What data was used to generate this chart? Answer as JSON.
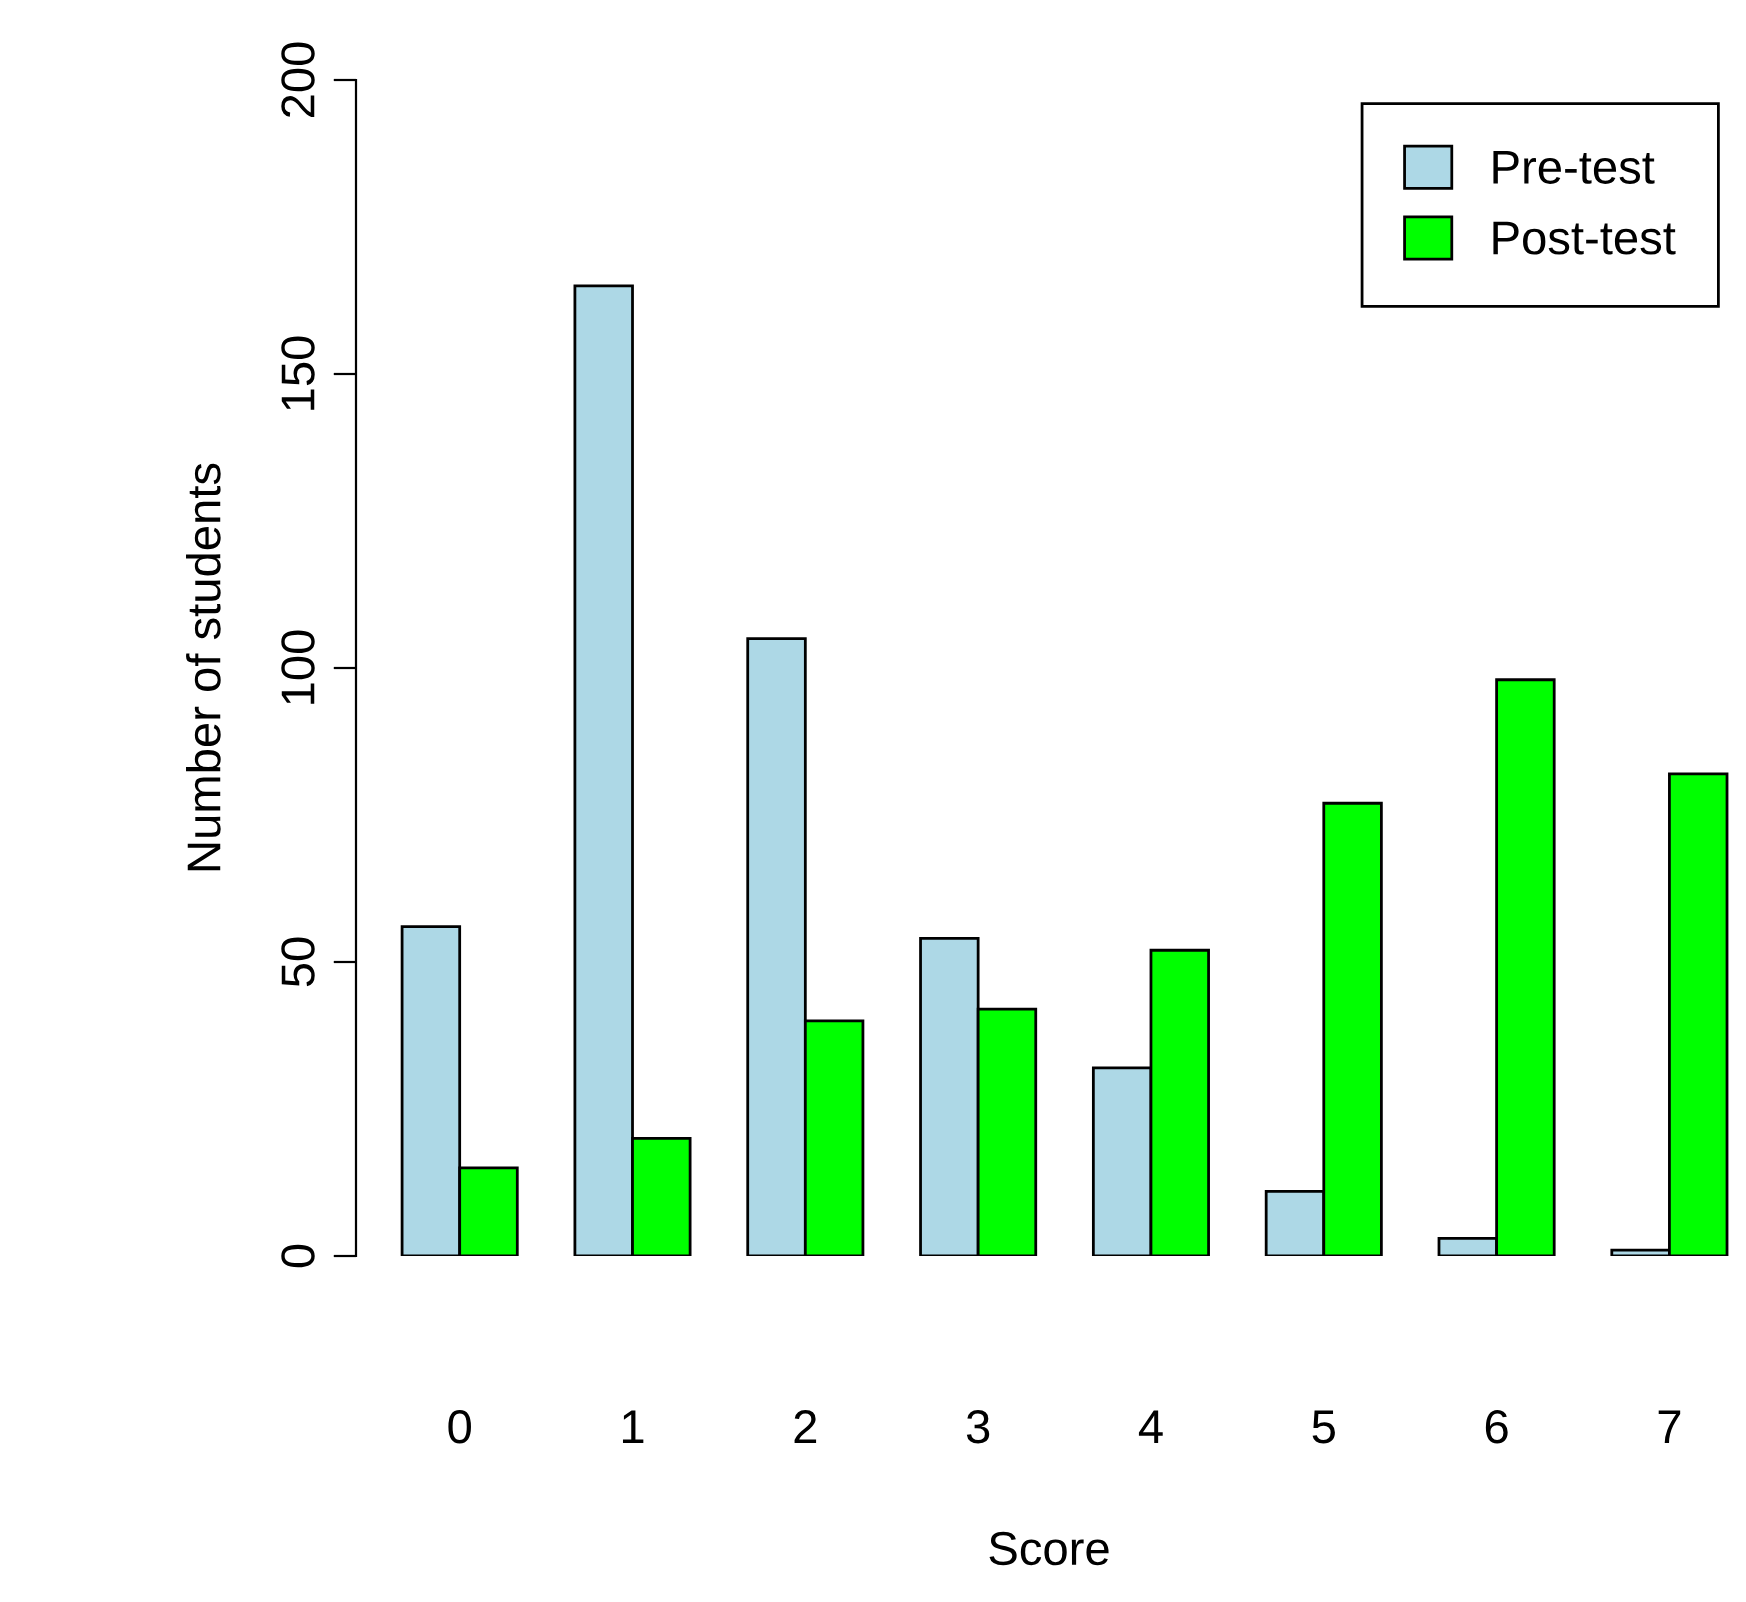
{
  "chart_data": {
    "type": "bar",
    "xlabel": "Score",
    "ylabel": "Number of students",
    "categories": [
      "0",
      "1",
      "2",
      "3",
      "4",
      "5",
      "6",
      "7"
    ],
    "series": [
      {
        "name": "Pre-test",
        "color": "#add8e6",
        "values": [
          56,
          165,
          105,
          54,
          32,
          11,
          3,
          1
        ]
      },
      {
        "name": "Post-test",
        "color": "#00ff00",
        "values": [
          15,
          20,
          40,
          42,
          52,
          77,
          98,
          82
        ]
      }
    ],
    "ylim": [
      0,
      200
    ],
    "yticks": [
      0,
      50,
      100,
      150,
      200
    ],
    "grid": false,
    "legend": "top right"
  }
}
